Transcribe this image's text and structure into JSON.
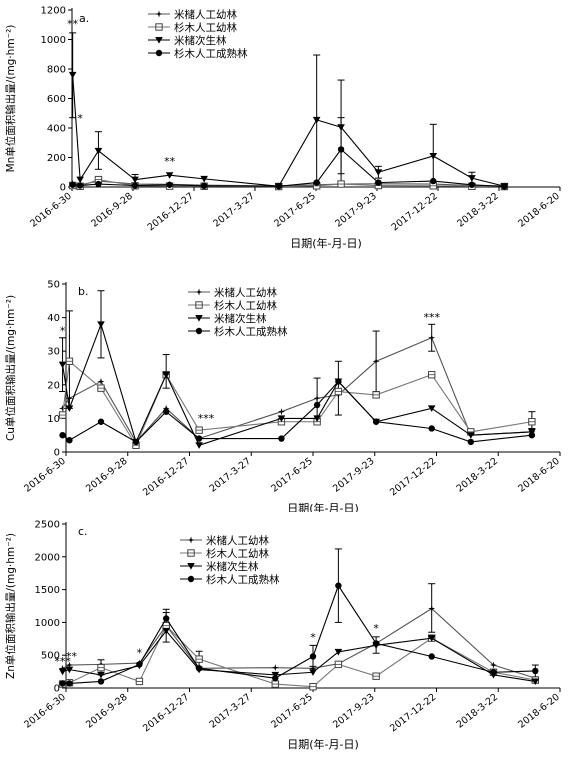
{
  "dates": [
    "2016-6-30",
    "2016-9-28",
    "2016-12-27",
    "2017-3-27",
    "2017-6-25",
    "2017-9-23",
    "2017-12-22",
    "2018-3-22",
    "2018-6-20"
  ],
  "xlabel": "日期(年-月-日)",
  "chart_data": [
    {
      "type": "line",
      "panel_label": "a.",
      "ylabel": "Mn单位面积输出量/(mg·hm⁻²)",
      "ylim": [
        0,
        1200
      ],
      "yticks": [
        0,
        200,
        400,
        600,
        800,
        1000,
        1200
      ],
      "legend_position": "top-center",
      "series": [
        {
          "name": "米槠人工幼林",
          "marker": "star",
          "points": [
            [
              "2016-7-1",
              20
            ],
            [
              "2016-7-12",
              15
            ],
            [
              "2016-8-8",
              40
            ],
            [
              "2016-10-1",
              20
            ],
            [
              "2016-11-21",
              18
            ],
            [
              "2017-1-11",
              12
            ],
            [
              "2017-5-1",
              8
            ],
            [
              "2017-6-26",
              15
            ],
            [
              "2017-8-1",
              20
            ],
            [
              "2017-9-25",
              22
            ],
            [
              "2017-12-15",
              20
            ],
            [
              "2018-2-10",
              10
            ],
            [
              "2018-3-30",
              8
            ]
          ]
        },
        {
          "name": "杉木人工幼林",
          "marker": "square",
          "points": [
            [
              "2016-7-1",
              10
            ],
            [
              "2016-7-12",
              5
            ],
            [
              "2016-8-8",
              50
            ],
            [
              "2016-10-1",
              8
            ],
            [
              "2016-11-21",
              6
            ],
            [
              "2017-1-11",
              5
            ],
            [
              "2017-5-1",
              3
            ],
            [
              "2017-6-26",
              8
            ],
            [
              "2017-8-1",
              20
            ],
            [
              "2017-9-25",
              10
            ],
            [
              "2017-12-15",
              8
            ],
            [
              "2018-2-10",
              5
            ],
            [
              "2018-3-30",
              3
            ]
          ]
        },
        {
          "name": "米槠次生林",
          "marker": "triangle-down",
          "points": [
            [
              "2016-7-1",
              760
            ],
            [
              "2016-7-12",
              50
            ],
            [
              "2016-8-8",
              245
            ],
            [
              "2016-10-1",
              50
            ],
            [
              "2016-11-21",
              80
            ],
            [
              "2017-1-11",
              55
            ],
            [
              "2017-5-1",
              5
            ],
            [
              "2017-6-26",
              455
            ],
            [
              "2017-8-1",
              405
            ],
            [
              "2017-9-25",
              100
            ],
            [
              "2017-12-15",
              210
            ],
            [
              "2018-2-10",
              60
            ],
            [
              "2018-3-30",
              5
            ]
          ]
        },
        {
          "name": "杉木人工成熟林",
          "marker": "circle",
          "points": [
            [
              "2016-7-1",
              15
            ],
            [
              "2016-7-12",
              10
            ],
            [
              "2016-8-8",
              20
            ],
            [
              "2016-10-1",
              10
            ],
            [
              "2016-11-21",
              15
            ],
            [
              "2017-1-11",
              8
            ],
            [
              "2017-5-1",
              5
            ],
            [
              "2017-6-26",
              30
            ],
            [
              "2017-8-1",
              255
            ],
            [
              "2017-9-25",
              30
            ],
            [
              "2017-12-15",
              40
            ],
            [
              "2018-2-10",
              15
            ],
            [
              "2018-3-30",
              3
            ]
          ]
        }
      ],
      "error_bars": [
        {
          "series": 2,
          "x": "2016-7-1",
          "high": 1045,
          "low": 470
        },
        {
          "series": 2,
          "x": "2016-8-8",
          "high": 375,
          "low": 120
        },
        {
          "series": 2,
          "x": "2017-6-26",
          "high": 895,
          "low": 20
        },
        {
          "series": 2,
          "x": "2017-8-1",
          "high": 725,
          "low": 90
        },
        {
          "series": 2,
          "x": "2017-12-15",
          "high": 425,
          "low": 0
        },
        {
          "series": 2,
          "x": "2017-9-25",
          "high": 140,
          "low": 60
        },
        {
          "series": 2,
          "x": "2016-10-1",
          "high": 85,
          "low": 20
        },
        {
          "series": 2,
          "x": "2018-2-10",
          "high": 100,
          "low": 20
        },
        {
          "series": 3,
          "x": "2017-8-1",
          "high": 470,
          "low": 40
        }
      ],
      "annotations": [
        {
          "text": "**",
          "x": "2016-7-1",
          "y": 1080
        },
        {
          "text": "*",
          "x": "2016-7-12",
          "y": 440
        },
        {
          "text": "**",
          "x": "2016-11-21",
          "y": 150
        }
      ]
    },
    {
      "type": "line",
      "panel_label": "b.",
      "ylabel": "Cu单位面积输出量/(mg·hm⁻²)",
      "ylim": [
        0,
        50
      ],
      "yticks": [
        0,
        10,
        20,
        30,
        40,
        50
      ],
      "legend_position": "top-center",
      "series": [
        {
          "name": "米槠人工幼林",
          "marker": "star",
          "points": [
            [
              "2016-6-25",
              13
            ],
            [
              "2016-7-5",
              16
            ],
            [
              "2016-8-20",
              21
            ],
            [
              "2016-10-10",
              3
            ],
            [
              "2016-11-23",
              13
            ],
            [
              "2017-1-10",
              4
            ],
            [
              "2017-5-10",
              12
            ],
            [
              "2017-7-1",
              16
            ],
            [
              "2017-8-1",
              17
            ],
            [
              "2017-9-25",
              27
            ],
            [
              "2017-12-15",
              34
            ],
            [
              "2018-2-10",
              5
            ],
            [
              "2018-5-10",
              6
            ]
          ]
        },
        {
          "name": "杉木人工幼林",
          "marker": "square",
          "points": [
            [
              "2016-6-25",
              11
            ],
            [
              "2016-7-5",
              27
            ],
            [
              "2016-8-20",
              19
            ],
            [
              "2016-10-10",
              2
            ],
            [
              "2016-11-23",
              23
            ],
            [
              "2017-1-10",
              6.5
            ],
            [
              "2017-5-10",
              9
            ],
            [
              "2017-7-1",
              9
            ],
            [
              "2017-8-1",
              18
            ],
            [
              "2017-9-25",
              17
            ],
            [
              "2017-12-15",
              23
            ],
            [
              "2018-2-10",
              6
            ],
            [
              "2018-5-10",
              9
            ]
          ]
        },
        {
          "name": "米槠次生林",
          "marker": "triangle-down",
          "points": [
            [
              "2016-6-25",
              26
            ],
            [
              "2016-7-5",
              13
            ],
            [
              "2016-8-20",
              38
            ],
            [
              "2016-10-10",
              3
            ],
            [
              "2016-11-23",
              23
            ],
            [
              "2017-1-10",
              2
            ],
            [
              "2017-5-10",
              10
            ],
            [
              "2017-7-1",
              10
            ],
            [
              "2017-8-1",
              21
            ],
            [
              "2017-9-25",
              9
            ],
            [
              "2017-12-15",
              13
            ],
            [
              "2018-2-10",
              5
            ],
            [
              "2018-5-10",
              6
            ]
          ]
        },
        {
          "name": "杉木人工成熟林",
          "marker": "circle",
          "points": [
            [
              "2016-6-25",
              5
            ],
            [
              "2016-7-5",
              3.5
            ],
            [
              "2016-8-20",
              9
            ],
            [
              "2016-10-10",
              3
            ],
            [
              "2016-11-23",
              12
            ],
            [
              "2017-1-10",
              4
            ],
            [
              "2017-5-10",
              4
            ],
            [
              "2017-7-1",
              14
            ],
            [
              "2017-8-1",
              21
            ],
            [
              "2017-9-25",
              9
            ],
            [
              "2017-12-15",
              7
            ],
            [
              "2018-2-10",
              3
            ],
            [
              "2018-5-10",
              5
            ]
          ]
        }
      ],
      "error_bars": [
        {
          "series": 2,
          "x": "2016-6-25",
          "high": 34,
          "low": 18
        },
        {
          "series": 1,
          "x": "2016-7-5",
          "high": 42,
          "low": 13
        },
        {
          "series": 2,
          "x": "2016-8-20",
          "high": 48,
          "low": 28
        },
        {
          "series": 1,
          "x": "2016-11-23",
          "high": 29,
          "low": 19
        },
        {
          "series": 0,
          "x": "2017-7-1",
          "high": 22,
          "low": 10
        },
        {
          "series": 0,
          "x": "2017-8-1",
          "high": 27,
          "low": 11
        },
        {
          "series": 0,
          "x": "2017-9-25",
          "high": 36,
          "low": 18
        },
        {
          "series": 0,
          "x": "2017-12-15",
          "high": 38,
          "low": 30
        },
        {
          "series": 1,
          "x": "2018-5-10",
          "high": 12,
          "low": 7
        }
      ],
      "annotations": [
        {
          "text": "*",
          "x": "2016-6-25",
          "y": 35
        },
        {
          "text": "***",
          "x": "2017-1-20",
          "y": 9
        },
        {
          "text": "***",
          "x": "2017-12-15",
          "y": 39
        }
      ]
    },
    {
      "type": "line",
      "panel_label": "c.",
      "ylabel": "Zn单位面积输出量/(mg·hm⁻²)",
      "ylim": [
        0,
        2500
      ],
      "yticks": [
        0,
        500,
        1000,
        1500,
        2000,
        2500
      ],
      "legend_position": "top-center",
      "series": [
        {
          "name": "米槠人工幼林",
          "marker": "star",
          "points": [
            [
              "2016-6-25",
              300
            ],
            [
              "2016-7-5",
              350
            ],
            [
              "2016-8-20",
              360
            ],
            [
              "2016-10-15",
              380
            ],
            [
              "2016-11-23",
              950
            ],
            [
              "2017-1-10",
              300
            ],
            [
              "2017-5-1",
              310
            ],
            [
              "2017-6-25",
              300
            ],
            [
              "2017-8-1",
              370
            ],
            [
              "2017-9-25",
              680
            ],
            [
              "2017-12-15",
              1210
            ],
            [
              "2018-3-15",
              350
            ],
            [
              "2018-5-15",
              150
            ]
          ]
        },
        {
          "name": "杉木人工幼林",
          "marker": "square",
          "points": [
            [
              "2016-6-25",
              60
            ],
            [
              "2016-7-5",
              80
            ],
            [
              "2016-8-20",
              310
            ],
            [
              "2016-10-15",
              100
            ],
            [
              "2016-11-23",
              950
            ],
            [
              "2017-1-10",
              440
            ],
            [
              "2017-5-1",
              60
            ],
            [
              "2017-6-25",
              20
            ],
            [
              "2017-8-1",
              360
            ],
            [
              "2017-9-25",
              180
            ],
            [
              "2017-12-15",
              760
            ],
            [
              "2018-3-15",
              240
            ],
            [
              "2018-5-15",
              120
            ]
          ]
        },
        {
          "name": "米槠次生林",
          "marker": "triangle-down",
          "points": [
            [
              "2016-6-25",
              250
            ],
            [
              "2016-7-5",
              280
            ],
            [
              "2016-8-20",
              200
            ],
            [
              "2016-10-15",
              340
            ],
            [
              "2016-11-23",
              870
            ],
            [
              "2017-1-10",
              280
            ],
            [
              "2017-5-1",
              200
            ],
            [
              "2017-6-25",
              240
            ],
            [
              "2017-8-1",
              550
            ],
            [
              "2017-9-25",
              650
            ],
            [
              "2017-12-15",
              760
            ],
            [
              "2018-3-15",
              200
            ],
            [
              "2018-5-15",
              100
            ]
          ]
        },
        {
          "name": "杉木人工成熟林",
          "marker": "circle",
          "points": [
            [
              "2016-6-25",
              70
            ],
            [
              "2016-7-5",
              70
            ],
            [
              "2016-8-20",
              100
            ],
            [
              "2016-10-15",
              360
            ],
            [
              "2016-11-23",
              1060
            ],
            [
              "2017-1-10",
              300
            ],
            [
              "2017-5-1",
              150
            ],
            [
              "2017-6-25",
              480
            ],
            [
              "2017-8-1",
              1560
            ],
            [
              "2017-9-25",
              680
            ],
            [
              "2017-12-15",
              480
            ],
            [
              "2018-3-15",
              240
            ],
            [
              "2018-5-15",
              260
            ]
          ]
        }
      ],
      "error_bars": [
        {
          "series": 3,
          "x": "2016-11-23",
          "high": 1200,
          "low": 900
        },
        {
          "series": 0,
          "x": "2016-11-23",
          "high": 1150,
          "low": 700
        },
        {
          "series": 1,
          "x": "2017-1-10",
          "high": 560,
          "low": 300
        },
        {
          "series": 3,
          "x": "2017-6-25",
          "high": 650,
          "low": 330
        },
        {
          "series": 3,
          "x": "2017-8-1",
          "high": 2120,
          "low": 1000
        },
        {
          "series": 2,
          "x": "2017-9-25",
          "high": 780,
          "low": 530
        },
        {
          "series": 0,
          "x": "2017-12-15",
          "high": 1590,
          "low": 850
        },
        {
          "series": 0,
          "x": "2016-8-20",
          "high": 430,
          "low": 200
        },
        {
          "series": 3,
          "x": "2018-5-15",
          "high": 350,
          "low": 170
        }
      ],
      "annotations": [
        {
          "text": "***",
          "x": "2016-6-25",
          "y": 350
        },
        {
          "text": "**",
          "x": "2016-7-8",
          "y": 430
        },
        {
          "text": "*",
          "x": "2016-10-15",
          "y": 480
        },
        {
          "text": "*",
          "x": "2017-6-25",
          "y": 720
        },
        {
          "text": "*",
          "x": "2017-9-25",
          "y": 850
        }
      ]
    }
  ]
}
